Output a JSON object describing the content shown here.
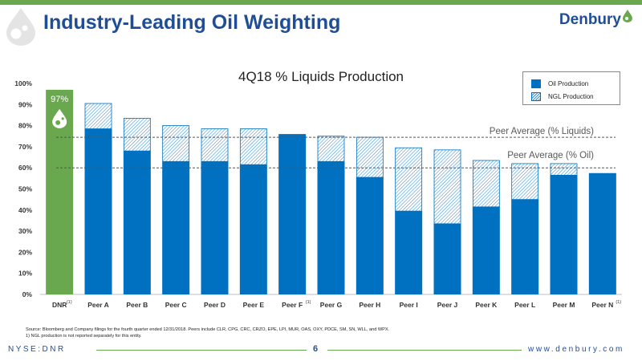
{
  "header": {
    "title": "Industry-Leading Oil Weighting",
    "brand": "Denbury"
  },
  "chart_data": {
    "type": "bar",
    "title": "4Q18 % Liquids Production",
    "categories": [
      "DNR",
      "Peer A",
      "Peer B",
      "Peer C",
      "Peer D",
      "Peer E",
      "Peer F",
      "Peer G",
      "Peer H",
      "Peer I",
      "Peer J",
      "Peer K",
      "Peer L",
      "Peer M",
      "Peer N"
    ],
    "footnote_markers": [
      "(1)",
      "",
      "",
      "",
      "",
      "",
      "(1)",
      "",
      "",
      "",
      "",
      "",
      "",
      "",
      "(1)"
    ],
    "series": [
      {
        "name": "Oil Production",
        "values": [
          97,
          78.5,
          68,
          63,
          63,
          61.5,
          76,
          63,
          55.5,
          39.5,
          33.5,
          41.5,
          45,
          56.5,
          57.5
        ]
      },
      {
        "name": "NGL Production",
        "values": [
          0,
          12,
          15.5,
          17,
          15.5,
          17,
          0,
          12,
          19,
          30,
          35,
          22,
          17,
          5.5,
          0
        ]
      }
    ],
    "highlight": {
      "category": "DNR",
      "label": "97%",
      "color": "#6aa84f"
    },
    "reference_lines": [
      {
        "label": "Peer Average (% Liquids)",
        "value": 74.5
      },
      {
        "label": "Peer Average (% Oil)",
        "value": 60
      }
    ],
    "y_ticks": [
      "0%",
      "10%",
      "20%",
      "30%",
      "40%",
      "50%",
      "60%",
      "70%",
      "80%",
      "90%",
      "100%"
    ],
    "ylim": [
      0,
      100
    ],
    "legend_position": "top-right",
    "colors": {
      "oil": "#0070c0",
      "ngl_hatch": "#3a8fd6",
      "dnr": "#6aa84f",
      "reference": "#555555"
    }
  },
  "footer": {
    "source": "Source: Bloomberg and Company filings for the fourth quarter ended 12/31/2018.  Peers include CLR, CPG, CRC, CRZO, EPE, LPI, MUR, OAS, OXY, PDCE, SM, SN, WLL, and WPX.",
    "note": "1)      NGL production is not reported separately for this entity.",
    "ticker": "NYSE:DNR",
    "page": "6",
    "website": "www.denbury.com"
  }
}
